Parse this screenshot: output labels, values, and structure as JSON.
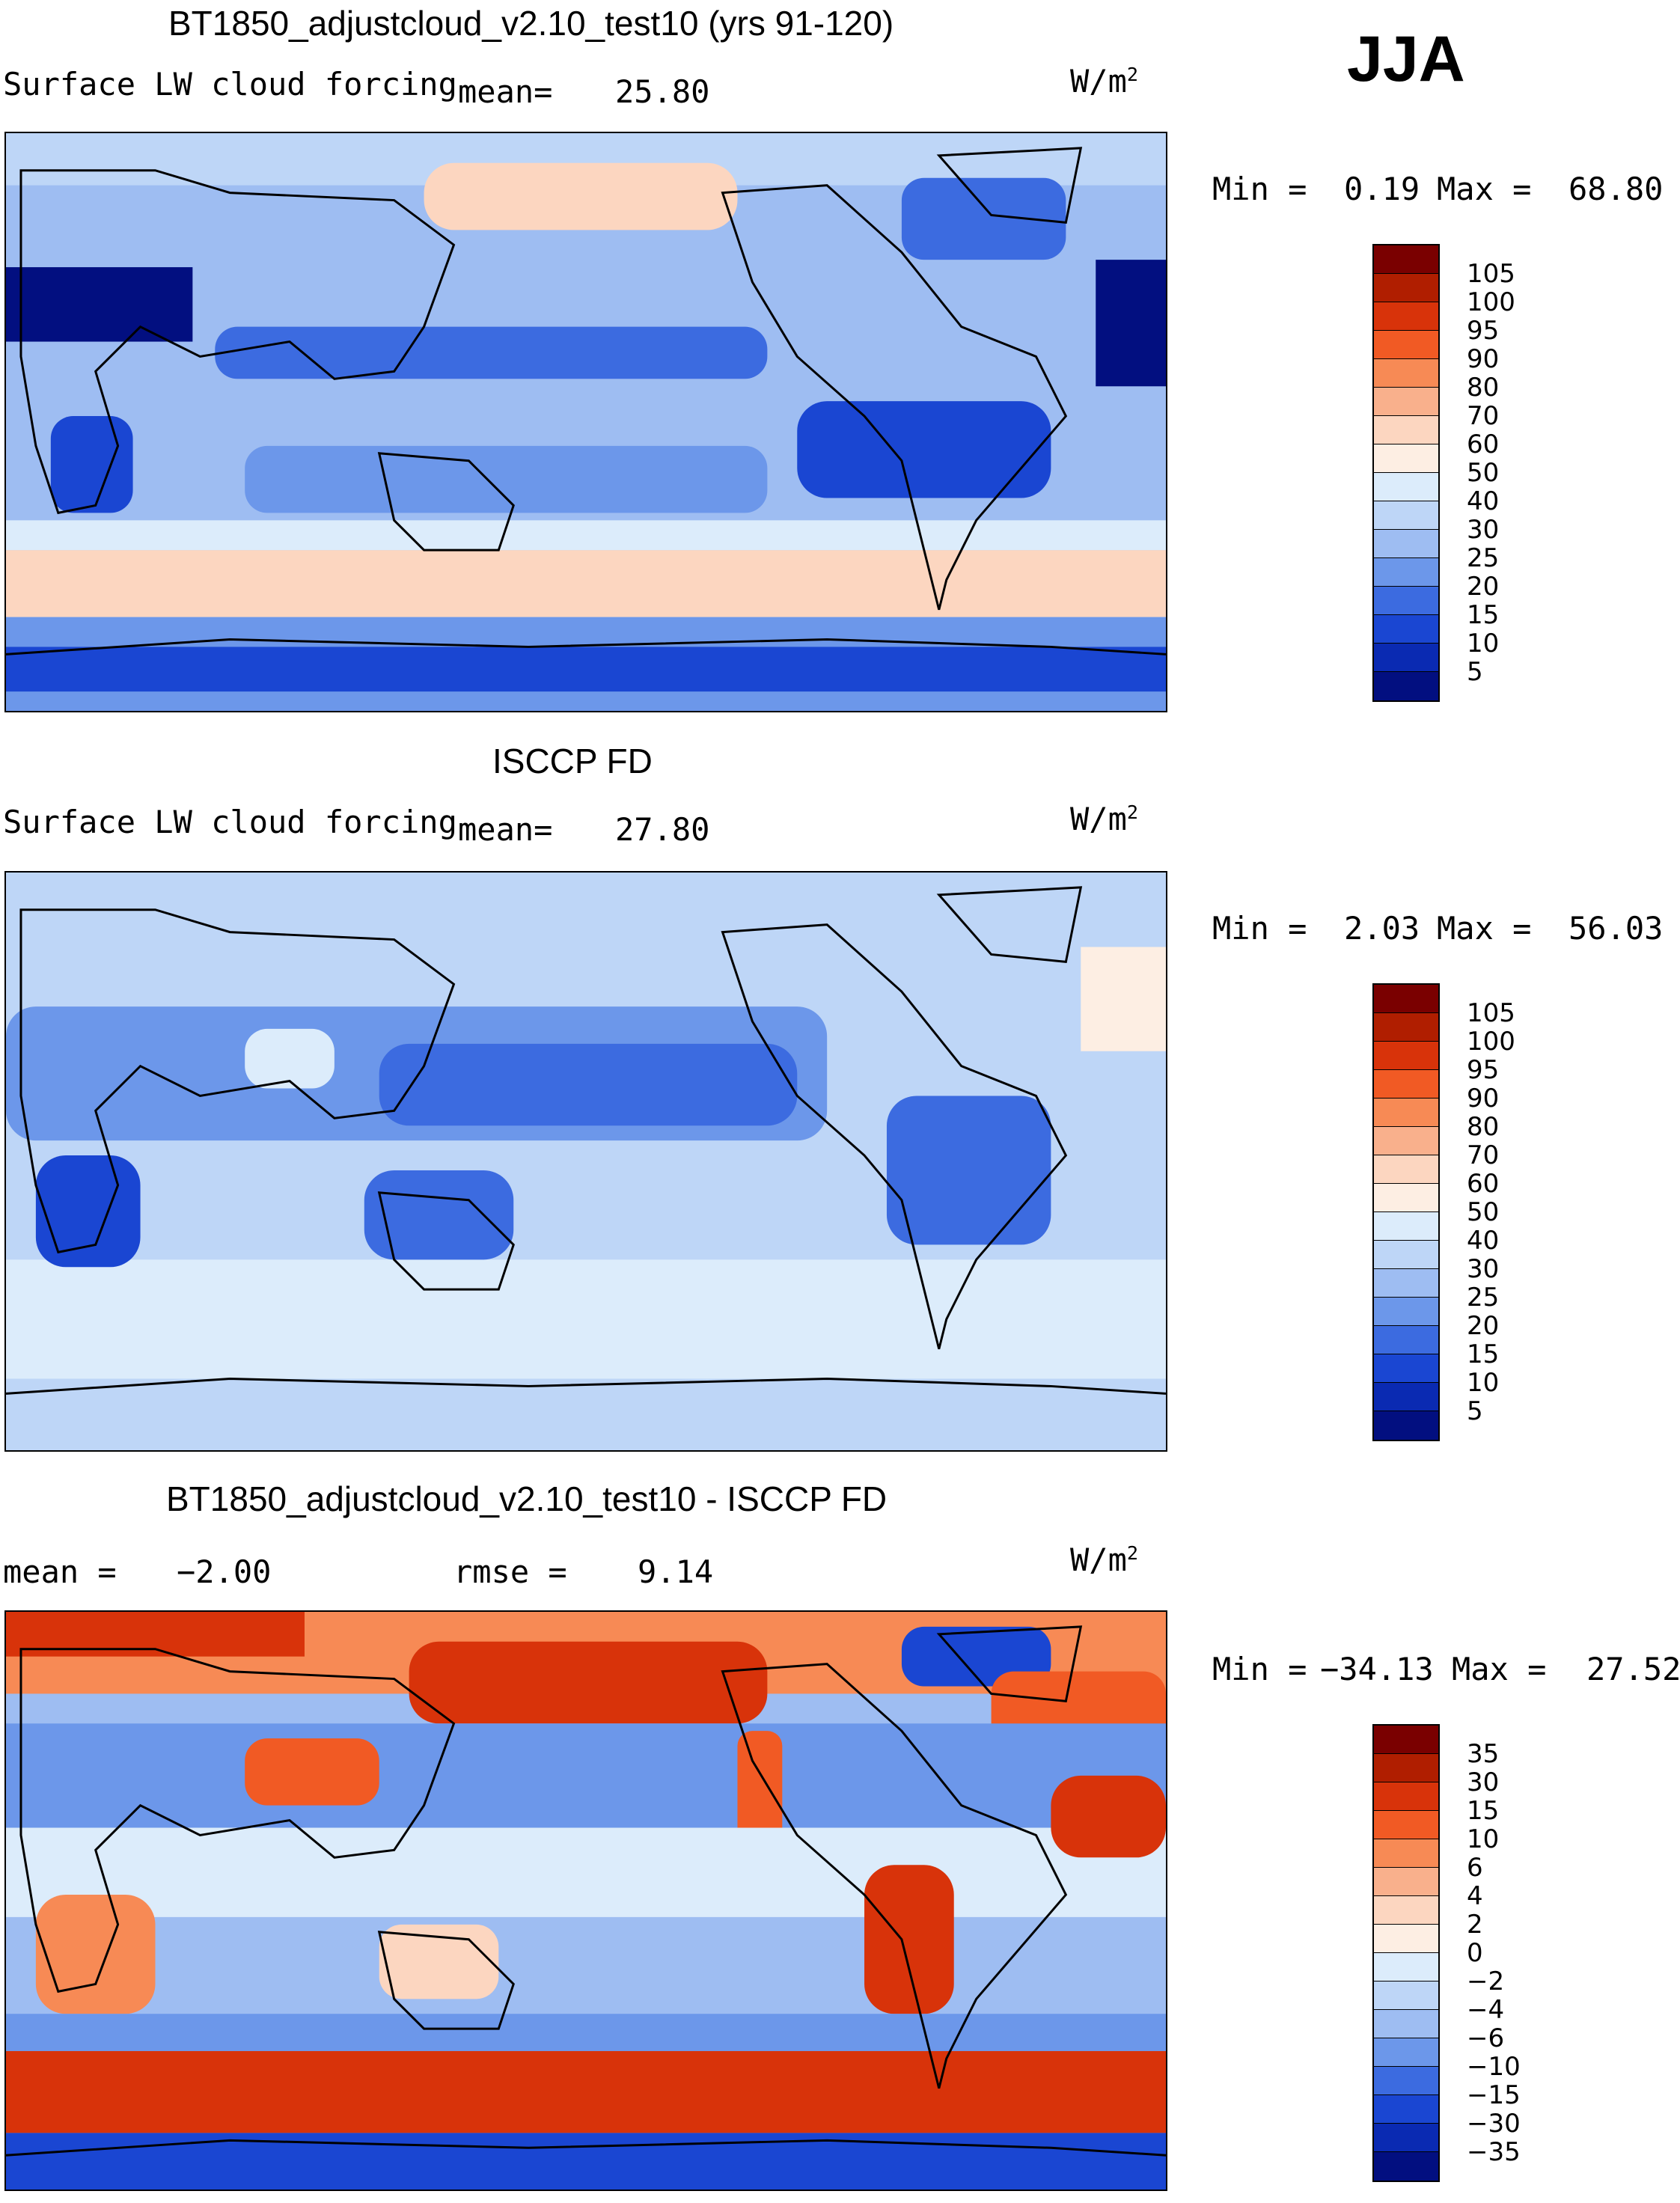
{
  "season": "JJA",
  "units_base": "W/m",
  "units_exp": "2",
  "panels": [
    {
      "title": "BT1850_adjustcloud_v2.10_test10 (yrs 91-120)",
      "variable": "Surface LW cloud forcing",
      "mean_label": "mean=",
      "mean_value": "25.80",
      "min_label": "Min =",
      "min_value": "0.19",
      "max_label": "Max =",
      "max_value": "68.80",
      "palette": [
        "#7a0000",
        "#b01e00",
        "#d8330a",
        "#f15a24",
        "#f78a55",
        "#f9b08c",
        "#fcd6c0",
        "#fdeee3",
        "#dcecfb",
        "#bed6f7",
        "#9ebdf2",
        "#6c97ea",
        "#3c6be0",
        "#1a46d2",
        "#0a2ab2",
        "#020f80"
      ],
      "ticks": [
        "105",
        "100",
        "95",
        "90",
        "80",
        "70",
        "60",
        "50",
        "40",
        "30",
        "25",
        "20",
        "15",
        "10",
        "5"
      ]
    },
    {
      "title": "ISCCP FD",
      "variable": "Surface LW cloud forcing",
      "mean_label": "mean=",
      "mean_value": "27.80",
      "min_label": "Min =",
      "min_value": "2.03",
      "max_label": "Max =",
      "max_value": "56.03",
      "palette": [
        "#7a0000",
        "#b01e00",
        "#d8330a",
        "#f15a24",
        "#f78a55",
        "#f9b08c",
        "#fcd6c0",
        "#fdeee3",
        "#dcecfb",
        "#bed6f7",
        "#9ebdf2",
        "#6c97ea",
        "#3c6be0",
        "#1a46d2",
        "#0a2ab2",
        "#020f80"
      ],
      "ticks": [
        "105",
        "100",
        "95",
        "90",
        "80",
        "70",
        "60",
        "50",
        "40",
        "30",
        "25",
        "20",
        "15",
        "10",
        "5"
      ]
    },
    {
      "title": "BT1850_adjustcloud_v2.10_test10 - ISCCP FD",
      "mean_label": "mean =",
      "mean_value": "−2.00",
      "rmse_label": "rmse =",
      "rmse_value": "9.14",
      "min_label": "Min =",
      "min_value": "−34.13",
      "max_label": "Max =",
      "max_value": "27.52",
      "palette": [
        "#7a0000",
        "#b01e00",
        "#d8330a",
        "#f15a24",
        "#f78a55",
        "#f9b08c",
        "#fcd6c0",
        "#fdeee3",
        "#dcecfb",
        "#bed6f7",
        "#9ebdf2",
        "#6c97ea",
        "#3c6be0",
        "#1a46d2",
        "#0a2ab2",
        "#020f80"
      ],
      "ticks": [
        "35",
        "30",
        "15",
        "10",
        "6",
        "4",
        "2",
        "0",
        "−2",
        "−4",
        "−6",
        "−10",
        "−15",
        "−30",
        "−35"
      ]
    }
  ]
}
